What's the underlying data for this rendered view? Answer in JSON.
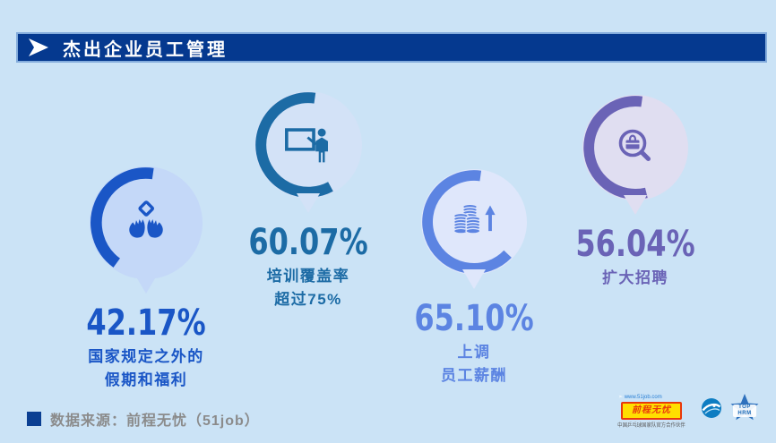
{
  "page": {
    "background": "#cbe3f6"
  },
  "header": {
    "title": "杰出企业员工管理",
    "bar_color": "#05398f",
    "arrow_icon": "play-arrow-icon"
  },
  "items": [
    {
      "value": "42.17%",
      "value_num": 42.17,
      "label_lines": [
        "国家规定之外的",
        "假期和福利"
      ],
      "color": "#1a56c6",
      "bubble_bg": "#c4d8f8",
      "icon": "hands-benefits-icon"
    },
    {
      "value": "60.07%",
      "value_num": 60.07,
      "label_lines": [
        "培训覆盖率",
        "超过75%"
      ],
      "color": "#1c6ba5",
      "bubble_bg": "#d3e2f7",
      "icon": "training-presentation-icon"
    },
    {
      "value": "65.10%",
      "value_num": 65.1,
      "label_lines": [
        "上调",
        "员工薪酬"
      ],
      "color": "#5c84e2",
      "bubble_bg": "#dfe7fb",
      "icon": "salary-coins-icon"
    },
    {
      "value": "56.04%",
      "value_num": 56.04,
      "label_lines": [
        "扩大招聘"
      ],
      "color": "#6a63b6",
      "bubble_bg": "#e0def1",
      "icon": "recruit-search-icon"
    }
  ],
  "footer": {
    "source_label": "数据来源：前程无忧（51job）"
  },
  "logos": {
    "job51": {
      "site_text": "www.51job.com",
      "name": "前程无忧",
      "slogan": "中国乒乓球国家队官方合作伙伴"
    },
    "tophrm": {
      "line1": "TOP",
      "line2": "HRM"
    }
  },
  "chart_data": {
    "type": "pie",
    "title": "杰出企业员工管理",
    "categories": [
      "国家规定之外的假期和福利",
      "培训覆盖率超过75%",
      "上调员工薪酬",
      "扩大招聘"
    ],
    "values": [
      42.17,
      60.07,
      65.1,
      56.04
    ],
    "unit": "%",
    "legend_position": "none",
    "notes": "four partial-ring KPI donuts, arc sweep proportional to percentage",
    "source": "数据来源：前程无忧（51job）"
  }
}
